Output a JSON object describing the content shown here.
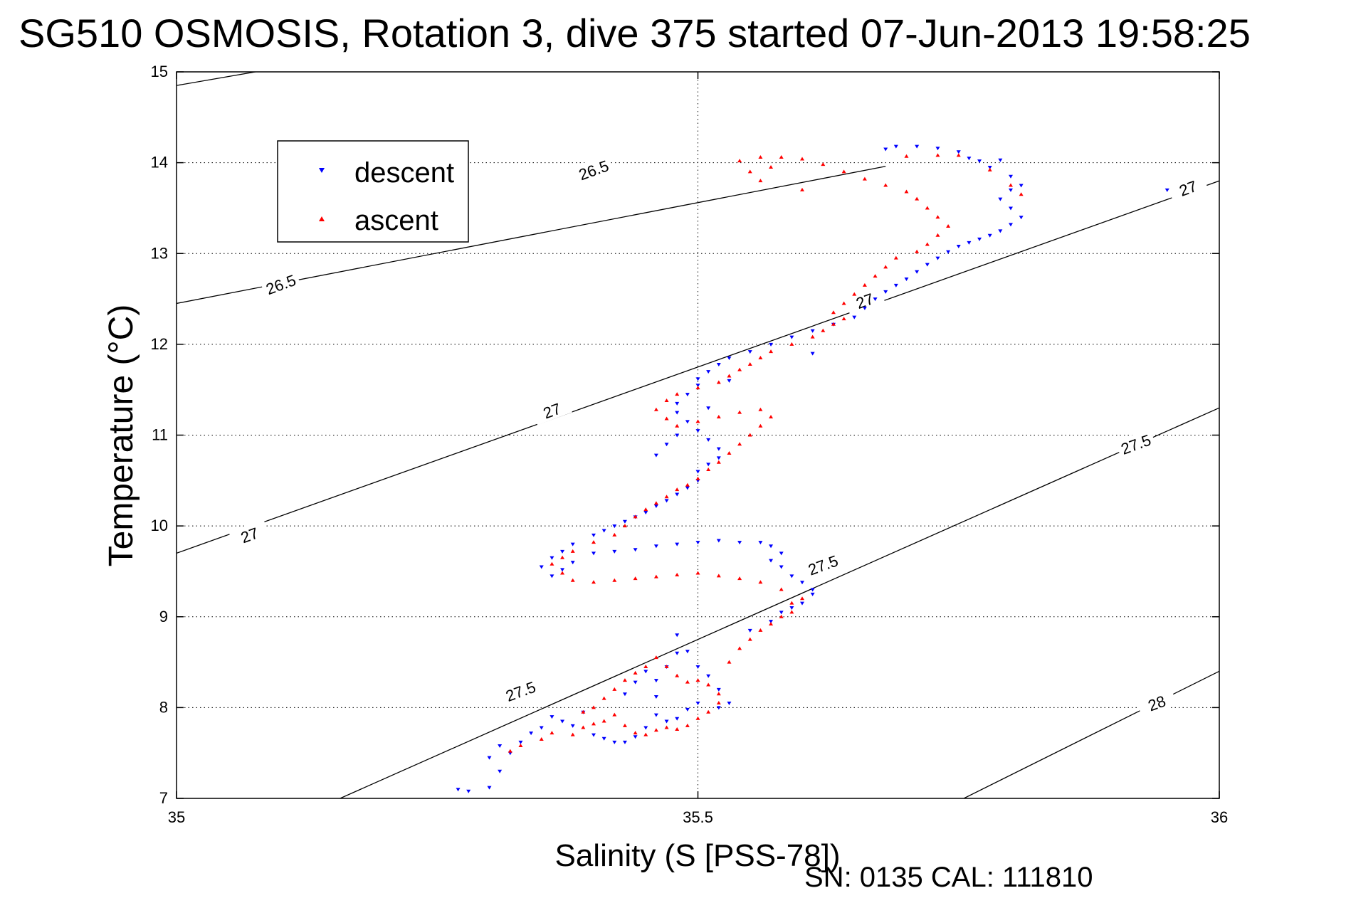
{
  "chart_data": {
    "type": "scatter",
    "title": "SG510 OSMOSIS, Rotation 3, dive 375 started 07-Jun-2013 19:58:25",
    "xlabel": "Salinity (S [PSS-78])",
    "ylabel": "Temperature (°C)",
    "footer": "SN: 0135  CAL: 111810",
    "xlim": [
      35,
      36
    ],
    "ylim": [
      7,
      15
    ],
    "x_ticks": [
      "35",
      "35.5",
      "36"
    ],
    "y_ticks": [
      "7",
      "8",
      "9",
      "10",
      "11",
      "12",
      "13",
      "14",
      "15"
    ],
    "grid": true,
    "legend_position": "top-left",
    "series": [
      {
        "name": "descent",
        "color": "#0000ff",
        "marker": "triangle-down",
        "points": [
          [
            35.27,
            7.1
          ],
          [
            35.28,
            7.08
          ],
          [
            35.3,
            7.12
          ],
          [
            35.31,
            7.3
          ],
          [
            35.3,
            7.45
          ],
          [
            35.31,
            7.58
          ],
          [
            35.32,
            7.5
          ],
          [
            35.33,
            7.62
          ],
          [
            35.34,
            7.72
          ],
          [
            35.35,
            7.78
          ],
          [
            35.36,
            7.9
          ],
          [
            35.37,
            7.85
          ],
          [
            35.38,
            7.8
          ],
          [
            35.39,
            7.95
          ],
          [
            35.4,
            7.7
          ],
          [
            35.41,
            7.66
          ],
          [
            35.42,
            7.62
          ],
          [
            35.43,
            7.62
          ],
          [
            35.44,
            7.68
          ],
          [
            35.45,
            7.78
          ],
          [
            35.46,
            7.92
          ],
          [
            35.47,
            7.85
          ],
          [
            35.48,
            7.88
          ],
          [
            35.49,
            7.98
          ],
          [
            35.5,
            8.05
          ],
          [
            35.46,
            8.12
          ],
          [
            35.46,
            8.3
          ],
          [
            35.47,
            8.45
          ],
          [
            35.48,
            8.6
          ],
          [
            35.48,
            8.8
          ],
          [
            35.49,
            8.62
          ],
          [
            35.5,
            8.45
          ],
          [
            35.51,
            8.35
          ],
          [
            35.52,
            8.2
          ],
          [
            35.53,
            8.05
          ],
          [
            35.52,
            8.0
          ],
          [
            35.45,
            8.4
          ],
          [
            35.44,
            8.28
          ],
          [
            35.43,
            8.15
          ],
          [
            35.55,
            8.85
          ],
          [
            35.57,
            8.95
          ],
          [
            35.58,
            9.05
          ],
          [
            35.59,
            9.1
          ],
          [
            35.6,
            9.15
          ],
          [
            35.61,
            9.25
          ],
          [
            35.61,
            9.3
          ],
          [
            35.6,
            9.38
          ],
          [
            35.59,
            9.45
          ],
          [
            35.58,
            9.55
          ],
          [
            35.57,
            9.62
          ],
          [
            35.58,
            9.7
          ],
          [
            35.57,
            9.78
          ],
          [
            35.56,
            9.82
          ],
          [
            35.54,
            9.82
          ],
          [
            35.52,
            9.84
          ],
          [
            35.5,
            9.82
          ],
          [
            35.48,
            9.8
          ],
          [
            35.46,
            9.78
          ],
          [
            35.44,
            9.74
          ],
          [
            35.42,
            9.72
          ],
          [
            35.4,
            9.7
          ],
          [
            35.38,
            9.6
          ],
          [
            35.37,
            9.52
          ],
          [
            35.36,
            9.45
          ],
          [
            35.35,
            9.55
          ],
          [
            35.36,
            9.65
          ],
          [
            35.37,
            9.72
          ],
          [
            35.38,
            9.8
          ],
          [
            35.4,
            9.9
          ],
          [
            35.41,
            9.95
          ],
          [
            35.42,
            10.0
          ],
          [
            35.43,
            10.05
          ],
          [
            35.44,
            10.1
          ],
          [
            35.45,
            10.15
          ],
          [
            35.46,
            10.22
          ],
          [
            35.47,
            10.28
          ],
          [
            35.48,
            10.35
          ],
          [
            35.49,
            10.42
          ],
          [
            35.5,
            10.5
          ],
          [
            35.5,
            10.6
          ],
          [
            35.51,
            10.68
          ],
          [
            35.52,
            10.75
          ],
          [
            35.52,
            10.85
          ],
          [
            35.51,
            10.95
          ],
          [
            35.5,
            11.05
          ],
          [
            35.49,
            11.15
          ],
          [
            35.48,
            11.25
          ],
          [
            35.48,
            11.35
          ],
          [
            35.49,
            11.45
          ],
          [
            35.5,
            11.55
          ],
          [
            35.5,
            11.62
          ],
          [
            35.51,
            11.7
          ],
          [
            35.52,
            11.78
          ],
          [
            35.53,
            11.85
          ],
          [
            35.55,
            11.92
          ],
          [
            35.57,
            12.0
          ],
          [
            35.59,
            12.08
          ],
          [
            35.61,
            12.15
          ],
          [
            35.63,
            12.22
          ],
          [
            35.65,
            12.3
          ],
          [
            35.66,
            12.4
          ],
          [
            35.67,
            12.5
          ],
          [
            35.68,
            12.58
          ],
          [
            35.69,
            12.65
          ],
          [
            35.7,
            12.72
          ],
          [
            35.71,
            12.8
          ],
          [
            35.72,
            12.88
          ],
          [
            35.73,
            12.95
          ],
          [
            35.74,
            13.02
          ],
          [
            35.75,
            13.08
          ],
          [
            35.76,
            13.12
          ],
          [
            35.77,
            13.16
          ],
          [
            35.78,
            13.2
          ],
          [
            35.79,
            13.25
          ],
          [
            35.8,
            13.32
          ],
          [
            35.81,
            13.4
          ],
          [
            35.8,
            13.5
          ],
          [
            35.79,
            13.6
          ],
          [
            35.8,
            13.7
          ],
          [
            35.81,
            13.75
          ],
          [
            35.8,
            13.85
          ],
          [
            35.78,
            13.95
          ],
          [
            35.76,
            14.05
          ],
          [
            35.75,
            14.12
          ],
          [
            35.73,
            14.16
          ],
          [
            35.71,
            14.18
          ],
          [
            35.69,
            14.18
          ],
          [
            35.68,
            14.15
          ],
          [
            35.77,
            14.02
          ],
          [
            35.79,
            14.03
          ],
          [
            35.61,
            11.9
          ],
          [
            35.48,
            11.0
          ],
          [
            35.47,
            10.9
          ],
          [
            35.46,
            10.78
          ],
          [
            35.51,
            11.3
          ],
          [
            35.53,
            11.6
          ],
          [
            35.95,
            13.7
          ]
        ]
      },
      {
        "name": "ascent",
        "color": "#ff0000",
        "marker": "triangle-up",
        "points": [
          [
            35.32,
            7.52
          ],
          [
            35.33,
            7.58
          ],
          [
            35.35,
            7.65
          ],
          [
            35.36,
            7.72
          ],
          [
            35.38,
            7.7
          ],
          [
            35.39,
            7.78
          ],
          [
            35.4,
            7.82
          ],
          [
            35.41,
            7.85
          ],
          [
            35.42,
            7.92
          ],
          [
            35.43,
            7.8
          ],
          [
            35.44,
            7.72
          ],
          [
            35.45,
            7.7
          ],
          [
            35.46,
            7.75
          ],
          [
            35.47,
            7.78
          ],
          [
            35.48,
            7.76
          ],
          [
            35.49,
            7.8
          ],
          [
            35.5,
            7.88
          ],
          [
            35.51,
            7.95
          ],
          [
            35.52,
            8.05
          ],
          [
            35.52,
            8.15
          ],
          [
            35.51,
            8.25
          ],
          [
            35.5,
            8.3
          ],
          [
            35.49,
            8.28
          ],
          [
            35.48,
            8.35
          ],
          [
            35.47,
            8.45
          ],
          [
            35.46,
            8.55
          ],
          [
            35.45,
            8.45
          ],
          [
            35.44,
            8.38
          ],
          [
            35.43,
            8.3
          ],
          [
            35.42,
            8.2
          ],
          [
            35.41,
            8.1
          ],
          [
            35.4,
            8.0
          ],
          [
            35.39,
            7.95
          ],
          [
            35.53,
            8.5
          ],
          [
            35.54,
            8.65
          ],
          [
            35.55,
            8.75
          ],
          [
            35.56,
            8.85
          ],
          [
            35.57,
            8.92
          ],
          [
            35.58,
            9.0
          ],
          [
            35.59,
            9.05
          ],
          [
            35.59,
            9.15
          ],
          [
            35.6,
            9.2
          ],
          [
            35.58,
            9.3
          ],
          [
            35.56,
            9.38
          ],
          [
            35.54,
            9.42
          ],
          [
            35.52,
            9.45
          ],
          [
            35.5,
            9.48
          ],
          [
            35.48,
            9.46
          ],
          [
            35.46,
            9.44
          ],
          [
            35.44,
            9.42
          ],
          [
            35.42,
            9.4
          ],
          [
            35.4,
            9.38
          ],
          [
            35.38,
            9.4
          ],
          [
            35.37,
            9.48
          ],
          [
            35.36,
            9.58
          ],
          [
            35.37,
            9.65
          ],
          [
            35.38,
            9.72
          ],
          [
            35.4,
            9.82
          ],
          [
            35.42,
            9.9
          ],
          [
            35.43,
            10.0
          ],
          [
            35.44,
            10.1
          ],
          [
            35.45,
            10.18
          ],
          [
            35.46,
            10.25
          ],
          [
            35.47,
            10.32
          ],
          [
            35.48,
            10.4
          ],
          [
            35.49,
            10.45
          ],
          [
            35.5,
            10.52
          ],
          [
            35.51,
            10.62
          ],
          [
            35.52,
            10.7
          ],
          [
            35.53,
            10.8
          ],
          [
            35.54,
            10.9
          ],
          [
            35.55,
            11.0
          ],
          [
            35.56,
            11.1
          ],
          [
            35.57,
            11.2
          ],
          [
            35.56,
            11.28
          ],
          [
            35.54,
            11.25
          ],
          [
            35.52,
            11.2
          ],
          [
            35.5,
            11.15
          ],
          [
            35.48,
            11.1
          ],
          [
            35.47,
            11.18
          ],
          [
            35.46,
            11.28
          ],
          [
            35.47,
            11.38
          ],
          [
            35.48,
            11.45
          ],
          [
            35.5,
            11.52
          ],
          [
            35.52,
            11.58
          ],
          [
            35.53,
            11.65
          ],
          [
            35.54,
            11.72
          ],
          [
            35.55,
            11.78
          ],
          [
            35.56,
            11.85
          ],
          [
            35.57,
            11.92
          ],
          [
            35.59,
            12.0
          ],
          [
            35.61,
            12.08
          ],
          [
            35.62,
            12.15
          ],
          [
            35.63,
            12.22
          ],
          [
            35.64,
            12.28
          ],
          [
            35.63,
            12.35
          ],
          [
            35.64,
            12.45
          ],
          [
            35.65,
            12.55
          ],
          [
            35.66,
            12.65
          ],
          [
            35.67,
            12.75
          ],
          [
            35.68,
            12.85
          ],
          [
            35.69,
            12.95
          ],
          [
            35.71,
            13.02
          ],
          [
            35.72,
            13.1
          ],
          [
            35.73,
            13.2
          ],
          [
            35.74,
            13.3
          ],
          [
            35.73,
            13.4
          ],
          [
            35.72,
            13.5
          ],
          [
            35.71,
            13.6
          ],
          [
            35.7,
            13.68
          ],
          [
            35.68,
            13.75
          ],
          [
            35.66,
            13.82
          ],
          [
            35.64,
            13.9
          ],
          [
            35.62,
            13.98
          ],
          [
            35.6,
            14.04
          ],
          [
            35.58,
            14.06
          ],
          [
            35.56,
            14.06
          ],
          [
            35.54,
            14.02
          ],
          [
            35.55,
            13.9
          ],
          [
            35.56,
            13.8
          ],
          [
            35.57,
            13.95
          ],
          [
            35.6,
            13.7
          ],
          [
            35.78,
            13.92
          ],
          [
            35.8,
            13.75
          ],
          [
            35.81,
            13.65
          ],
          [
            35.75,
            14.08
          ],
          [
            35.73,
            14.08
          ],
          [
            35.7,
            14.07
          ]
        ]
      }
    ],
    "density_contours": [
      {
        "label": "26.5",
        "points": [
          [
            35,
            14.85
          ],
          [
            35.68,
            16.2
          ]
        ]
      },
      {
        "label": "26.5",
        "points": [
          [
            35,
            12.45
          ],
          [
            35.68,
            13.96
          ]
        ]
      },
      {
        "label": "27",
        "points": [
          [
            35,
            9.7
          ],
          [
            36,
            13.8
          ]
        ]
      },
      {
        "label": "27.5",
        "points": [
          [
            35,
            6.2
          ],
          [
            36,
            11.3
          ]
        ]
      },
      {
        "label": "28",
        "points": [
          [
            35.58,
            6.0
          ],
          [
            36,
            8.4
          ]
        ]
      }
    ],
    "contour_label_positions": [
      {
        "label": "26.5",
        "x": 35.4,
        "y": 13.92
      },
      {
        "label": "26.5",
        "x": 35.1,
        "y": 12.66
      },
      {
        "label": "27",
        "x": 35.07,
        "y": 9.9
      },
      {
        "label": "27",
        "x": 35.36,
        "y": 11.27
      },
      {
        "label": "27",
        "x": 35.66,
        "y": 12.48
      },
      {
        "label": "27",
        "x": 35.97,
        "y": 13.72
      },
      {
        "label": "27.5",
        "x": 35.33,
        "y": 8.18
      },
      {
        "label": "27.5",
        "x": 35.62,
        "y": 9.57
      },
      {
        "label": "27.5",
        "x": 35.92,
        "y": 10.9
      },
      {
        "label": "28",
        "x": 35.94,
        "y": 8.05
      }
    ]
  }
}
